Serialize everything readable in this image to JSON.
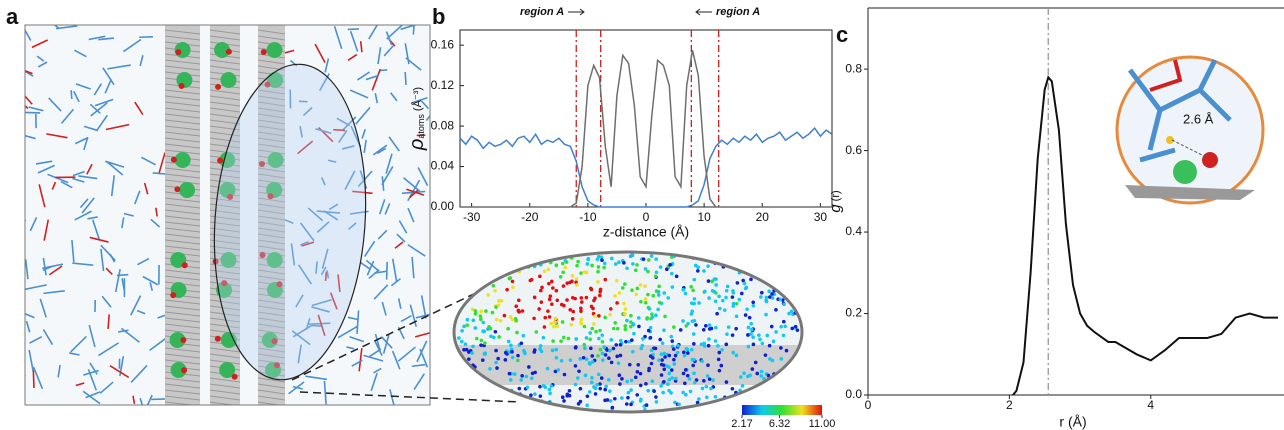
{
  "panel_labels": [
    "a",
    "b",
    "c"
  ],
  "chart_data": [
    {
      "type": "line",
      "x_label": "z-distance (Å)",
      "y_label": {
        "symbol": "ρ",
        "subscript": "atoms",
        "unit": "(Å⁻³)"
      },
      "annotations": [
        "region A",
        "region A"
      ],
      "x": [
        -32,
        -31,
        -30,
        -29,
        -28,
        -27,
        -26,
        -25,
        -24,
        -23,
        -22,
        -21,
        -20,
        -19,
        -18,
        -17,
        -16,
        -15,
        -14,
        -13,
        -12,
        -11,
        -10,
        -9,
        -8,
        -7,
        -6,
        -5,
        -4,
        -3,
        -2,
        -1,
        0,
        1,
        2,
        3,
        4,
        5,
        6,
        7,
        8,
        9,
        10,
        11,
        12,
        13,
        14,
        15,
        16,
        17,
        18,
        19,
        20,
        21,
        22,
        23,
        24,
        25,
        26,
        27,
        28,
        29,
        30,
        31,
        32
      ],
      "series": [
        {
          "color": "#3f7fcf",
          "values": [
            0.068,
            0.062,
            0.07,
            0.066,
            0.058,
            0.064,
            0.06,
            0.062,
            0.066,
            0.06,
            0.068,
            0.07,
            0.064,
            0.072,
            0.062,
            0.066,
            0.064,
            0.068,
            0.062,
            0.06,
            0.045,
            0.02,
            0.006,
            0.002,
            0,
            0,
            0,
            0,
            0,
            0,
            0,
            0,
            0,
            0,
            0,
            0,
            0,
            0,
            0,
            0,
            0.002,
            0.006,
            0.022,
            0.048,
            0.06,
            0.066,
            0.062,
            0.068,
            0.064,
            0.07,
            0.066,
            0.072,
            0.064,
            0.068,
            0.07,
            0.074,
            0.066,
            0.07,
            0.074,
            0.068,
            0.072,
            0.078,
            0.07,
            0.076,
            0.072
          ]
        },
        {
          "color": "#6e6e6e",
          "values": [
            0,
            0,
            0,
            0,
            0,
            0,
            0,
            0,
            0,
            0,
            0,
            0,
            0,
            0,
            0,
            0,
            0,
            0,
            0,
            0,
            0.004,
            0.04,
            0.12,
            0.14,
            0.128,
            0.06,
            0.02,
            0.11,
            0.15,
            0.142,
            0.1,
            0.03,
            0.02,
            0.09,
            0.145,
            0.14,
            0.12,
            0.03,
            0.02,
            0.12,
            0.155,
            0.13,
            0.05,
            0.008,
            0,
            0,
            0,
            0,
            0,
            0,
            0,
            0,
            0,
            0,
            0,
            0,
            0,
            0,
            0,
            0,
            0,
            0,
            0,
            0,
            0
          ]
        }
      ],
      "vlines": [
        -12,
        -7.8,
        7.8,
        12.5
      ],
      "vline_color": "#d02020",
      "xlim": [
        -32,
        32
      ],
      "xticks": [
        -30,
        -20,
        -10,
        0,
        10,
        20,
        30
      ],
      "ylim": [
        0,
        0.175
      ],
      "yticks": [
        {
          "value": 0,
          "label": "0.00"
        },
        0.04,
        0.08,
        0.12,
        0.16
      ]
    },
    {
      "type": "line",
      "x_label": "r (Å)",
      "y_label": {
        "symbol": "g",
        "unit": "(r)"
      },
      "annotations": [
        "2.6 Å"
      ],
      "x": [
        2.05,
        2.1,
        2.2,
        2.3,
        2.4,
        2.5,
        2.55,
        2.6,
        2.7,
        2.8,
        2.9,
        3.0,
        3.1,
        3.2,
        3.4,
        3.5,
        3.6,
        3.8,
        4.0,
        4.2,
        4.4,
        4.6,
        4.8,
        5.0,
        5.2,
        5.4,
        5.6,
        5.8
      ],
      "series": [
        {
          "color": "#111111",
          "values": [
            0,
            0.01,
            0.08,
            0.3,
            0.58,
            0.75,
            0.78,
            0.77,
            0.65,
            0.42,
            0.27,
            0.2,
            0.17,
            0.155,
            0.13,
            0.13,
            0.12,
            0.1,
            0.085,
            0.11,
            0.14,
            0.14,
            0.14,
            0.15,
            0.19,
            0.2,
            0.19,
            0.19
          ]
        }
      ],
      "vlines": [
        2.55
      ],
      "vline_color": "#999999",
      "xlim": [
        0,
        5.8
      ],
      "xticks": [
        0,
        2,
        4
      ],
      "ylim": [
        0,
        0.95
      ],
      "yticks": [
        {
          "value": 0,
          "label": "0.0"
        },
        0.2,
        0.4,
        0.6,
        0.8
      ]
    }
  ],
  "colorbar": {
    "lim": [
      2.17,
      11
    ],
    "ticks": [
      2.17,
      6.32,
      {
        "value": 11,
        "label": "11.00"
      }
    ]
  }
}
